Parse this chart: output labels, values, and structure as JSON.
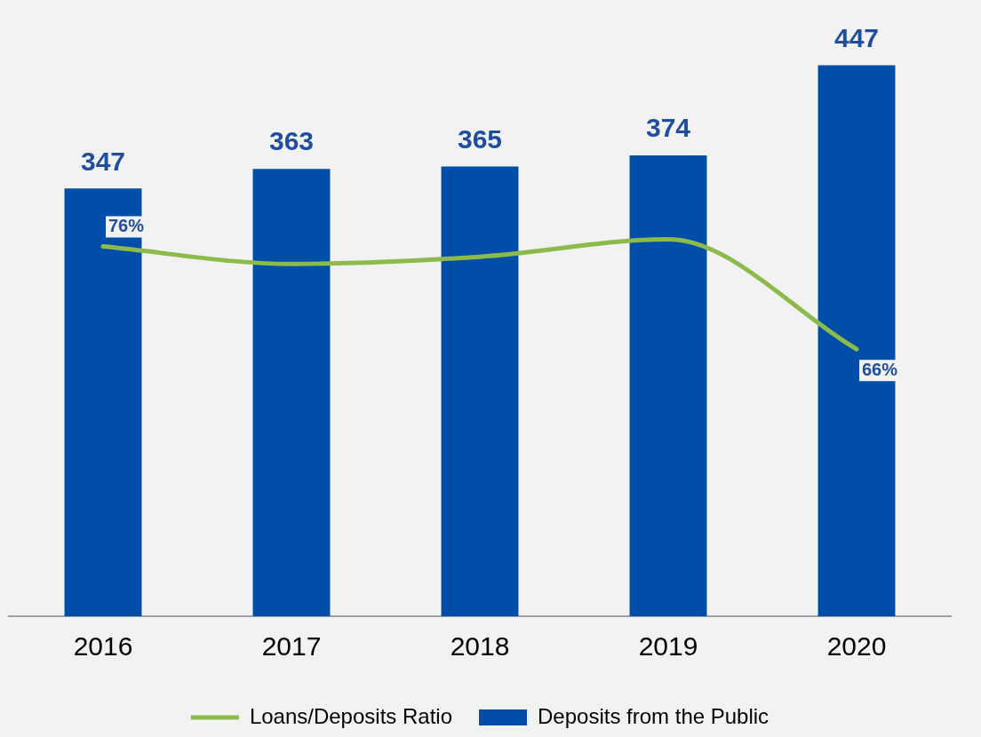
{
  "chart_data": {
    "type": "bar",
    "categories": [
      "2016",
      "2017",
      "2018",
      "2019",
      "2020"
    ],
    "series": [
      {
        "name": "Deposits from the Public",
        "color": "#004ea8",
        "values": [
          347,
          363,
          365,
          374,
          447
        ],
        "value_labels": [
          "347",
          "363",
          "365",
          "374",
          "447"
        ]
      },
      {
        "type": "line",
        "axis": "y2",
        "name": "Loans/Deposits Ratio",
        "color": "#8cbb4c",
        "values": [
          76,
          74.3,
          75,
          76.7,
          66
        ],
        "value_labels": [
          "76%",
          null,
          null,
          null,
          "66%"
        ],
        "marker": "none",
        "line_style": "solid"
      }
    ],
    "tick_labels": "x",
    "grid": false,
    "legend": "bottom"
  }
}
